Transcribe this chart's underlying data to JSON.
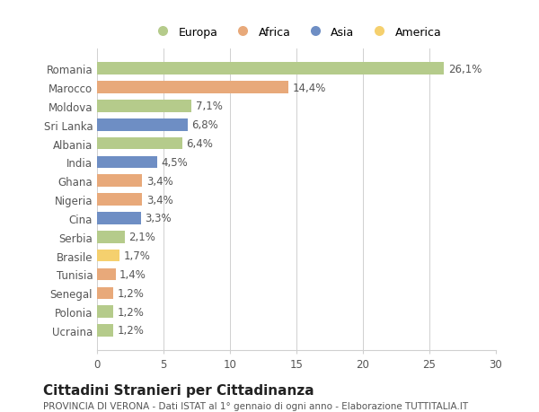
{
  "countries": [
    "Romania",
    "Marocco",
    "Moldova",
    "Sri Lanka",
    "Albania",
    "India",
    "Ghana",
    "Nigeria",
    "Cina",
    "Serbia",
    "Brasile",
    "Tunisia",
    "Senegal",
    "Polonia",
    "Ucraina"
  ],
  "values": [
    26.1,
    14.4,
    7.1,
    6.8,
    6.4,
    4.5,
    3.4,
    3.4,
    3.3,
    2.1,
    1.7,
    1.4,
    1.2,
    1.2,
    1.2
  ],
  "labels": [
    "26,1%",
    "14,4%",
    "7,1%",
    "6,8%",
    "6,4%",
    "4,5%",
    "3,4%",
    "3,4%",
    "3,3%",
    "2,1%",
    "1,7%",
    "1,4%",
    "1,2%",
    "1,2%",
    "1,2%"
  ],
  "continents": [
    "Europa",
    "Africa",
    "Europa",
    "Asia",
    "Europa",
    "Asia",
    "Africa",
    "Africa",
    "Asia",
    "Europa",
    "America",
    "Africa",
    "Africa",
    "Europa",
    "Europa"
  ],
  "colors": {
    "Europa": "#b5cb8b",
    "Africa": "#e8a97a",
    "Asia": "#6e8ec4",
    "America": "#f5d06e"
  },
  "legend_order": [
    "Europa",
    "Africa",
    "Asia",
    "America"
  ],
  "xlim": [
    0,
    30
  ],
  "xticks": [
    0,
    5,
    10,
    15,
    20,
    25,
    30
  ],
  "title": "Cittadini Stranieri per Cittadinanza",
  "subtitle": "PROVINCIA DI VERONA - Dati ISTAT al 1° gennaio di ogni anno - Elaborazione TUTTITALIA.IT",
  "bg_color": "#ffffff",
  "grid_color": "#d0d0d0",
  "bar_height": 0.65,
  "label_fontsize": 8.5,
  "tick_fontsize": 8.5,
  "title_fontsize": 11,
  "subtitle_fontsize": 7.5
}
